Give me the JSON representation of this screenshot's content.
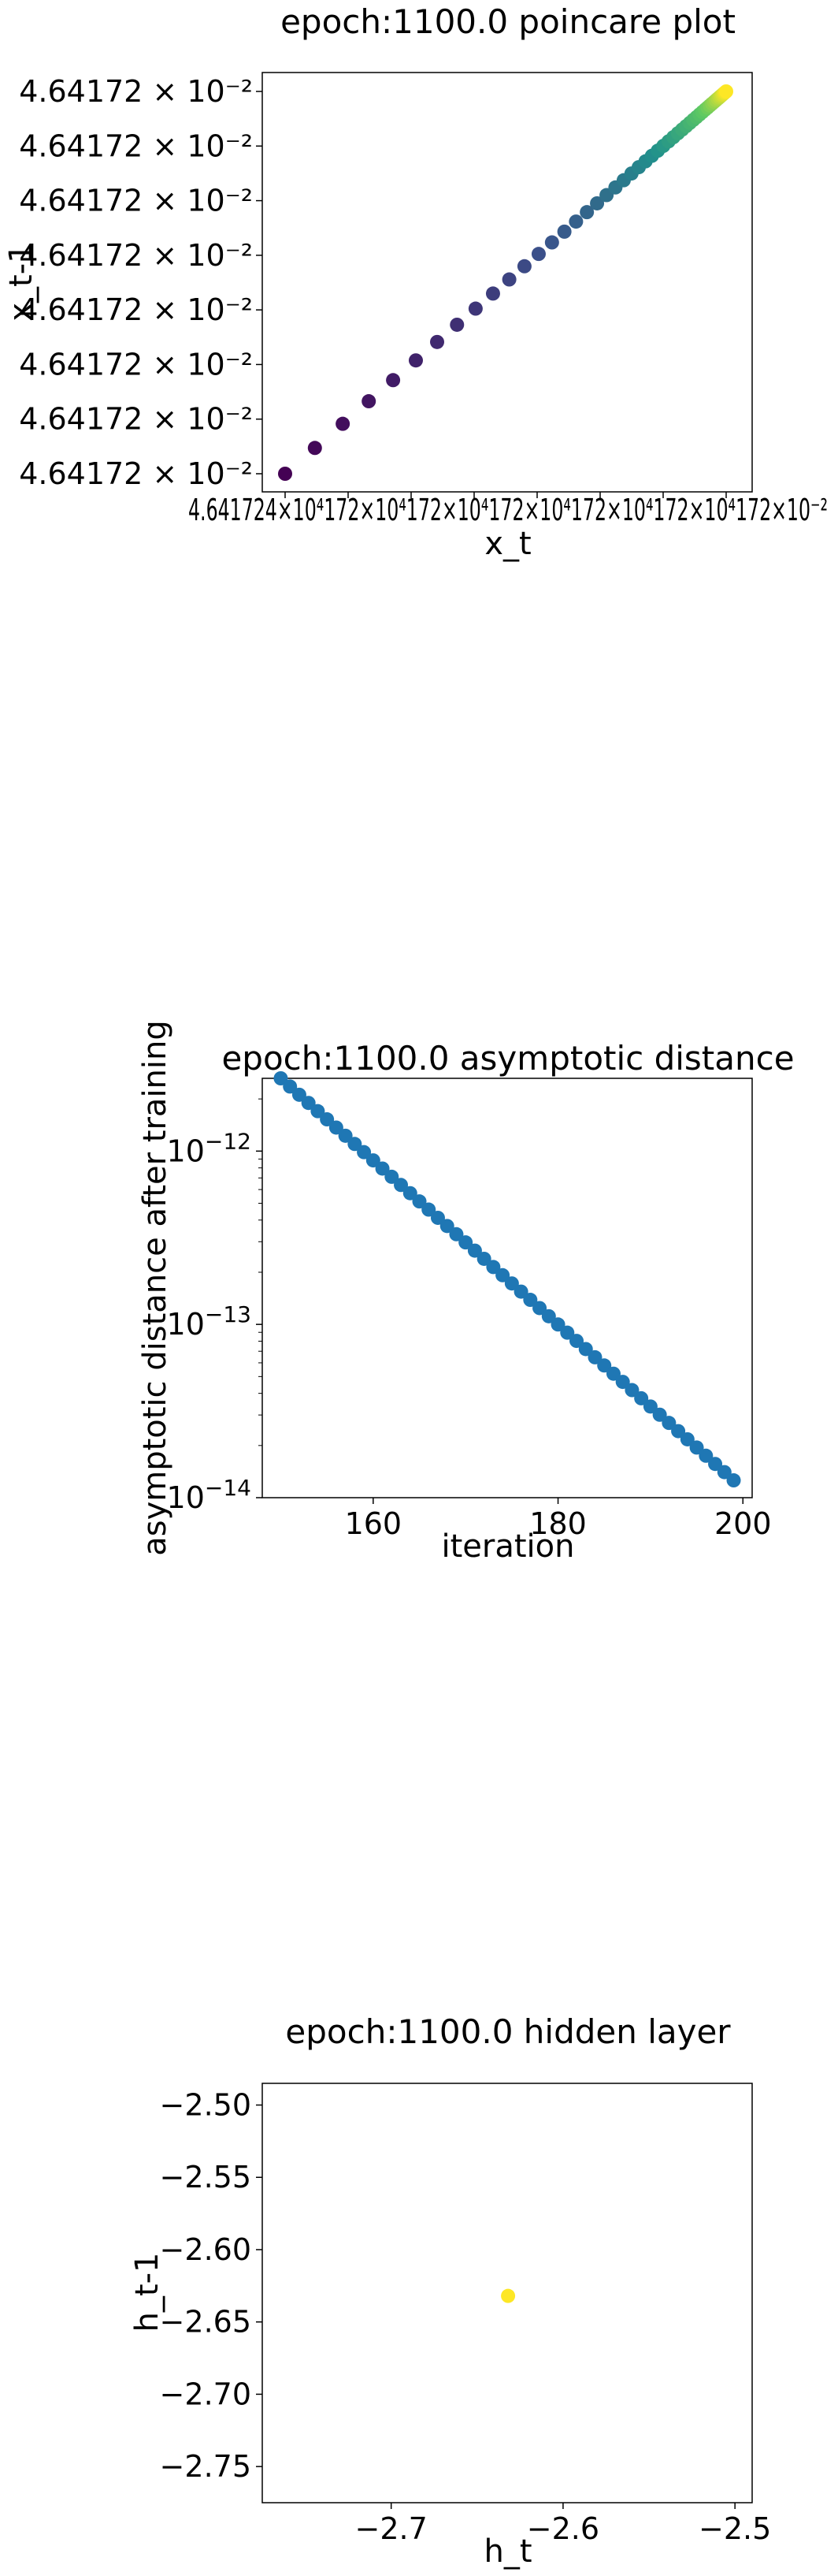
{
  "chart_data": [
    {
      "type": "scatter",
      "title": "epoch:1100.0 poincare plot",
      "xlabel": "x_t",
      "ylabel": "x_t-1",
      "xtick_text": "4.641724×10⁴172×10⁴172×10⁴172×10⁴172×10⁴172×10⁴172×10⁻²",
      "ytick_labels": [
        "4.64172 × 10⁻²",
        "4.64172 × 10⁻²",
        "4.64172 × 10⁻²",
        "4.64172 × 10⁻²",
        "4.64172 × 10⁻²",
        "4.64172 × 10⁻²",
        "4.64172 × 10⁻²",
        "4.64172 × 10⁻²"
      ],
      "colormap": "viridis",
      "grid": false,
      "points_note": "50 points along the diagonal, spacing shrinking geometrically toward the upper right",
      "point_count": 50,
      "ratio": 0.935
    },
    {
      "type": "scatter",
      "title": "epoch:1100.0 asymptotic distance",
      "xlabel": "iteration",
      "ylabel": "asymptotic distance after training",
      "xlim": [
        148,
        201
      ],
      "ylim_log10": [
        -14,
        -11.58
      ],
      "yscale": "log",
      "xticks": [
        160,
        180,
        200
      ],
      "yticks": [
        {
          "base": "10",
          "exp": "−12",
          "value": -12
        },
        {
          "base": "10",
          "exp": "−13",
          "value": -13
        },
        {
          "base": "10",
          "exp": "−14",
          "value": -14
        }
      ],
      "x_start": 150,
      "x_end": 199,
      "y_log10_start": -11.58,
      "y_log10_end": -13.9,
      "color": "#1f77b4",
      "grid": false
    },
    {
      "type": "scatter",
      "title": "epoch:1100.0 hidden layer",
      "xlabel": "h_t",
      "ylabel": "h_t-1",
      "xlim": [
        -2.775,
        -2.49
      ],
      "ylim": [
        -2.775,
        -2.485
      ],
      "xticks": [
        {
          "value": -2.7,
          "label": "−2.7"
        },
        {
          "value": -2.6,
          "label": "−2.6"
        },
        {
          "value": -2.5,
          "label": "−2.5"
        }
      ],
      "yticks": [
        {
          "value": -2.5,
          "label": "−2.50"
        },
        {
          "value": -2.55,
          "label": "−2.55"
        },
        {
          "value": -2.6,
          "label": "−2.60"
        },
        {
          "value": -2.65,
          "label": "−2.65"
        },
        {
          "value": -2.7,
          "label": "−2.70"
        },
        {
          "value": -2.75,
          "label": "−2.75"
        }
      ],
      "points": [
        {
          "x": -2.632,
          "y": -2.632
        }
      ],
      "color": "#fde725",
      "grid": false
    }
  ]
}
